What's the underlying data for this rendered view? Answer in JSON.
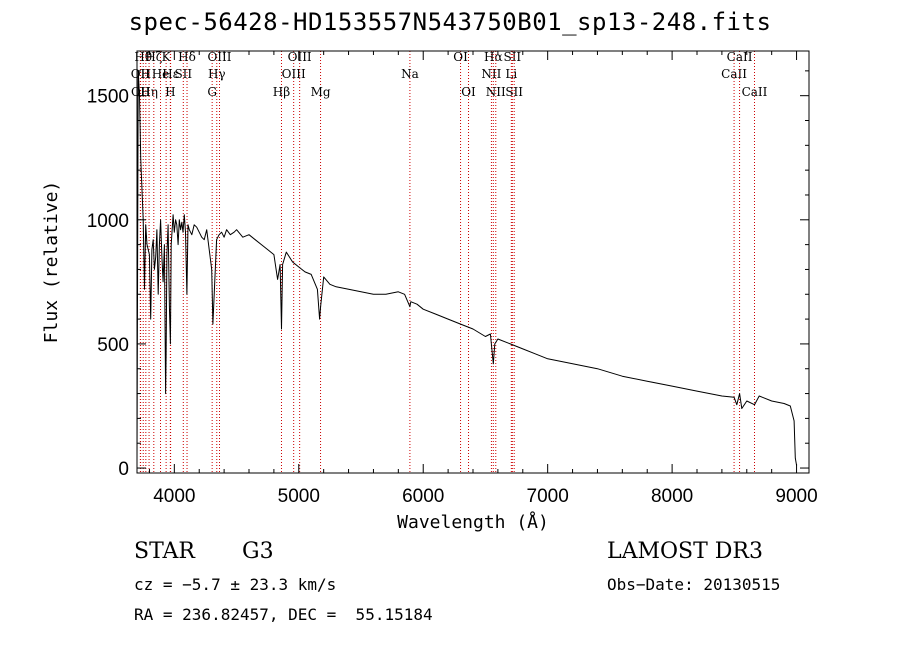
{
  "chart_data": {
    "type": "line",
    "title": "spec-56428-HD153557N543750B01_sp13-248.fits",
    "xlabel": "Wavelength (Å)",
    "ylabel": "Flux (relative)",
    "xlim": [
      3700,
      9100
    ],
    "ylim": [
      -20,
      1680
    ],
    "xticks": [
      4000,
      5000,
      6000,
      7000,
      8000,
      9000
    ],
    "yticks": [
      0,
      500,
      1000,
      1500
    ],
    "series": [
      {
        "name": "flux",
        "x": [
          3700,
          3710,
          3720,
          3725,
          3730,
          3740,
          3750,
          3760,
          3770,
          3780,
          3790,
          3800,
          3810,
          3820,
          3830,
          3840,
          3850,
          3860,
          3870,
          3880,
          3890,
          3900,
          3910,
          3920,
          3930,
          3934,
          3940,
          3950,
          3960,
          3968,
          3975,
          3990,
          4000,
          4010,
          4020,
          4030,
          4040,
          4050,
          4060,
          4070,
          4080,
          4090,
          4101,
          4110,
          4120,
          4140,
          4160,
          4180,
          4200,
          4220,
          4240,
          4260,
          4280,
          4300,
          4310,
          4320,
          4340,
          4360,
          4380,
          4400,
          4420,
          4450,
          4480,
          4500,
          4550,
          4600,
          4650,
          4700,
          4750,
          4800,
          4830,
          4850,
          4861,
          4870,
          4900,
          4950,
          5000,
          5050,
          5100,
          5150,
          5167,
          5175,
          5200,
          5250,
          5300,
          5400,
          5500,
          5600,
          5700,
          5800,
          5850,
          5893,
          5900,
          5950,
          6000,
          6100,
          6200,
          6300,
          6400,
          6500,
          6540,
          6563,
          6575,
          6600,
          6700,
          6800,
          6900,
          7000,
          7200,
          7400,
          7600,
          7800,
          8000,
          8200,
          8400,
          8498,
          8520,
          8542,
          8560,
          8600,
          8662,
          8700,
          8800,
          8900,
          8950,
          8980,
          8990,
          9000
        ],
        "values": [
          30,
          1600,
          1500,
          1380,
          1250,
          1120,
          1000,
          720,
          980,
          900,
          880,
          860,
          600,
          880,
          920,
          800,
          850,
          960,
          700,
          900,
          1000,
          850,
          750,
          900,
          300,
          450,
          860,
          980,
          650,
          500,
          900,
          1020,
          950,
          1000,
          980,
          900,
          1000,
          960,
          990,
          950,
          1020,
          950,
          700,
          980,
          960,
          940,
          980,
          970,
          950,
          930,
          920,
          960,
          880,
          800,
          580,
          700,
          920,
          940,
          950,
          930,
          960,
          940,
          950,
          960,
          930,
          940,
          920,
          900,
          880,
          860,
          760,
          820,
          560,
          820,
          870,
          830,
          810,
          790,
          780,
          720,
          600,
          650,
          770,
          740,
          730,
          720,
          710,
          700,
          700,
          710,
          700,
          650,
          670,
          660,
          640,
          620,
          600,
          580,
          560,
          530,
          540,
          420,
          500,
          520,
          500,
          480,
          460,
          440,
          420,
          400,
          370,
          350,
          330,
          310,
          290,
          285,
          255,
          300,
          240,
          270,
          255,
          290,
          270,
          260,
          250,
          190,
          40,
          10
        ],
        "color": "#000000"
      }
    ],
    "lines": [
      {
        "wavelength": 3727,
        "label": "OII",
        "row": 2
      },
      {
        "wavelength": 3729,
        "label": "OII",
        "row": 3
      },
      {
        "wavelength": 3750,
        "label": "Hθ",
        "row": 1
      },
      {
        "wavelength": 3771,
        "label": "H",
        "row": 2
      },
      {
        "wavelength": 3797,
        "label": "Hη",
        "row": 3
      },
      {
        "wavelength": 3835,
        "label": "Hζ",
        "row": 1
      },
      {
        "wavelength": 3889,
        "label": "He",
        "row": 2
      },
      {
        "wavelength": 3934,
        "label": "K",
        "row": 1
      },
      {
        "wavelength": 3968,
        "label": "H",
        "row": 3
      },
      {
        "wavelength": 3970,
        "label": "Hε",
        "row": 2
      },
      {
        "wavelength": 4072,
        "label": "SII",
        "row": 2
      },
      {
        "wavelength": 4102,
        "label": "Hδ",
        "row": 1
      },
      {
        "wavelength": 4304,
        "label": "G",
        "row": 3
      },
      {
        "wavelength": 4341,
        "label": "Hγ",
        "row": 2
      },
      {
        "wavelength": 4363,
        "label": "OIII",
        "row": 1
      },
      {
        "wavelength": 4861,
        "label": "Hβ",
        "row": 3
      },
      {
        "wavelength": 4959,
        "label": "OIII",
        "row": 2
      },
      {
        "wavelength": 5007,
        "label": "OIII",
        "row": 1
      },
      {
        "wavelength": 5175,
        "label": "Mg",
        "row": 3
      },
      {
        "wavelength": 5893,
        "label": "Na",
        "row": 2
      },
      {
        "wavelength": 6300,
        "label": "OI",
        "row": 1
      },
      {
        "wavelength": 6364,
        "label": "OI",
        "row": 3
      },
      {
        "wavelength": 6548,
        "label": "NII",
        "row": 2
      },
      {
        "wavelength": 6563,
        "label": "Hα",
        "row": 1
      },
      {
        "wavelength": 6583,
        "label": "NII",
        "row": 3
      },
      {
        "wavelength": 6708,
        "label": "Li",
        "row": 2
      },
      {
        "wavelength": 6716,
        "label": "SII",
        "row": 1
      },
      {
        "wavelength": 6731,
        "label": "SII",
        "row": 3
      },
      {
        "wavelength": 8498,
        "label": "CaII",
        "row": 2
      },
      {
        "wavelength": 8542,
        "label": "CaII",
        "row": 1
      },
      {
        "wavelength": 8662,
        "label": "CaII",
        "row": 3
      }
    ],
    "line_color": "#cc0000"
  },
  "info": {
    "object_class": "STAR",
    "subclass": "G3",
    "survey": "LAMOST DR3",
    "cz": "cz = −5.7 ± 23.3 km/s",
    "obs_date": "Obs−Date: 20130515",
    "coords": "RA = 236.82457, DEC =  55.15184"
  }
}
